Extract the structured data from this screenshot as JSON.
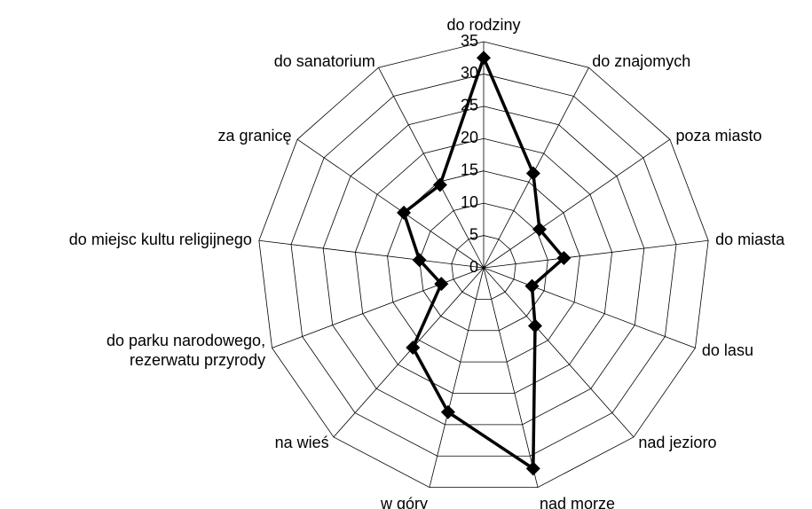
{
  "chart_data": {
    "type": "radar",
    "categories": [
      "do rodziny",
      "do znajomych",
      "poza miasto",
      "do miasta",
      "do lasu",
      "nad jezioro",
      "nad morze",
      "w góry",
      "na wieś",
      "do parku narodowego,\nrezerwatu przyrody",
      "do miejsc kultu religijnego",
      "za granicę",
      "do sanatorium"
    ],
    "values": [
      32.5,
      16.5,
      10.5,
      12.5,
      8,
      12,
      32,
      23,
      16.5,
      7,
      10,
      15,
      14.5
    ],
    "color": "#000000",
    "ylim": [
      0,
      35
    ],
    "yticks": [
      0,
      5,
      10,
      15,
      20,
      25,
      30,
      35
    ],
    "grid": true
  }
}
